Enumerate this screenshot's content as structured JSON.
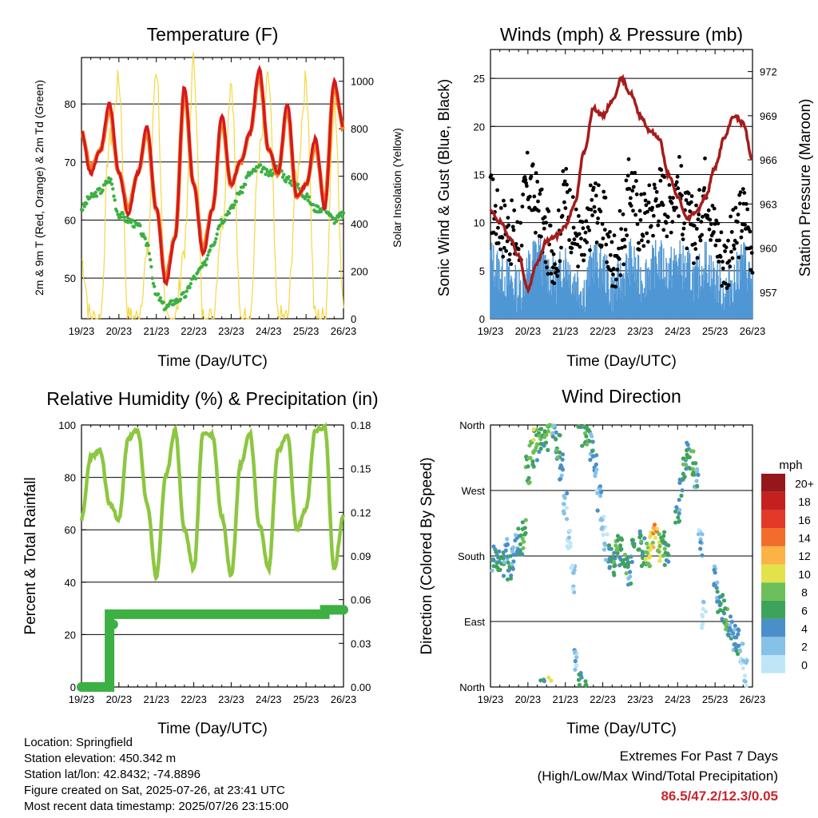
{
  "colors": {
    "temp_2m": "#d7191c",
    "temp_9m": "#f47d20",
    "dewpoint": "#3cb043",
    "insolation": "#f5d742",
    "wind": "#4f97d4",
    "gust": "#000000",
    "pressure": "#a51c1c",
    "humidity": "#8dc641",
    "precip": "#3cb043",
    "direction_speed_scale": [
      "#bfe6f7",
      "#86c1e8",
      "#4a8fc7",
      "#3ea35a",
      "#6cbf5a",
      "#e4e24a",
      "#fbb345",
      "#f26c2c",
      "#e23a29",
      "#c4201f",
      "#95171b"
    ]
  },
  "time_ticks": [
    "19/23",
    "20/23",
    "21/23",
    "22/23",
    "23/23",
    "24/23",
    "25/23",
    "26/23"
  ],
  "chart_data": [
    {
      "id": "temperature",
      "type": "line",
      "title": "Temperature (F)",
      "xlabel": "Time (Day/UTC)",
      "ylabel": "2m & 9m T (Red, Orange) & 2m Td (Green)",
      "y2label": "Solar Insolation (Yellow)",
      "ylim": [
        43,
        88
      ],
      "yticks": [
        50,
        60,
        70,
        80
      ],
      "y2lim": [
        0,
        1100
      ],
      "y2ticks": [
        0,
        200,
        400,
        600,
        800,
        1000
      ],
      "x": [
        0,
        0.25,
        0.5,
        0.75,
        1.0,
        1.25,
        1.5,
        1.75,
        2.0,
        2.25,
        2.5,
        2.75,
        3.0,
        3.25,
        3.5,
        3.75,
        4.0,
        4.25,
        4.5,
        4.75,
        5.0,
        5.25,
        5.5,
        5.75,
        6.0,
        6.25,
        6.5,
        6.75,
        7.0
      ],
      "series": [
        {
          "key": "t2m",
          "values": [
            75,
            68,
            72,
            80,
            68,
            61,
            68,
            76,
            62,
            49,
            57,
            83,
            66,
            54,
            62,
            78,
            66,
            70,
            75,
            86,
            72,
            68,
            80,
            64,
            66,
            74,
            62,
            84,
            76
          ]
        },
        {
          "key": "t9m",
          "values": [
            75,
            69,
            72,
            79,
            68,
            62,
            68,
            75,
            62,
            50,
            57,
            82,
            66,
            55,
            62,
            77,
            66,
            70,
            75,
            85,
            72,
            68,
            79,
            64,
            66,
            73,
            63,
            83,
            76
          ]
        },
        {
          "key": "td2m",
          "values": [
            62,
            64,
            65,
            67,
            61,
            60,
            59,
            56,
            47,
            45,
            46,
            47,
            50,
            52,
            56,
            60,
            62,
            65,
            68,
            69,
            68,
            69,
            67,
            66,
            64,
            62,
            62,
            60,
            61
          ]
        },
        {
          "key": "insolation",
          "values": [
            250,
            0,
            0,
            750,
            1000,
            0,
            0,
            250,
            1060,
            0,
            0,
            300,
            1080,
            0,
            0,
            400,
            1000,
            0,
            0,
            700,
            1000,
            0,
            0,
            600,
            1000,
            0,
            0,
            900,
            100
          ]
        }
      ]
    },
    {
      "id": "winds",
      "type": "scatter",
      "title": "Winds (mph) & Pressure (mb)",
      "xlabel": "Time (Day/UTC)",
      "ylabel": "Sonic Wind & Gust (Blue, Black)",
      "y2label": "Station Pressure (Maroon)",
      "ylim": [
        0,
        28
      ],
      "yticks": [
        0,
        5,
        10,
        15,
        20,
        25
      ],
      "y2lim": [
        955.2,
        973.5
      ],
      "y2ticks": [
        957,
        960,
        963,
        966,
        969,
        972
      ],
      "x": [
        0,
        0.25,
        0.5,
        0.75,
        1.0,
        1.25,
        1.5,
        1.75,
        2.0,
        2.25,
        2.5,
        2.75,
        3.0,
        3.25,
        3.5,
        3.75,
        4.0,
        4.25,
        4.5,
        4.75,
        5.0,
        5.25,
        5.5,
        5.75,
        6.0,
        6.25,
        6.5,
        6.75,
        7.0
      ],
      "series": [
        {
          "key": "wind",
          "values": [
            6,
            5,
            4,
            3,
            5,
            7,
            5,
            4,
            6,
            4,
            3,
            6,
            5,
            3,
            4,
            6,
            4,
            5,
            6,
            5,
            6,
            5,
            4,
            6,
            4,
            3,
            4,
            6,
            4
          ]
        },
        {
          "key": "gust",
          "values": [
            12,
            10,
            9,
            8,
            14,
            12,
            8,
            7,
            13,
            9,
            7,
            12,
            10,
            6,
            8,
            14,
            10,
            11,
            13,
            12,
            14,
            10,
            9,
            14,
            9,
            6,
            8,
            11,
            8
          ]
        },
        {
          "key": "pressure",
          "values": [
            962.5,
            961.8,
            960.8,
            959.5,
            957.2,
            959.0,
            960.5,
            960.8,
            961.5,
            963.0,
            966.5,
            969.5,
            969.0,
            970.0,
            971.5,
            970.5,
            969.0,
            968.0,
            967.5,
            965.0,
            963.5,
            962.0,
            962.5,
            963.5,
            965.5,
            967.5,
            969.0,
            968.5,
            966.0
          ]
        }
      ]
    },
    {
      "id": "humidity",
      "type": "line",
      "title": "Relative Humidity (%) & Precipitation (in)",
      "xlabel": "Time (Day/UTC)",
      "ylabel": "Percent & Total Rainfall",
      "ylim": [
        0,
        100
      ],
      "yticks": [
        0,
        20,
        40,
        60,
        80,
        100
      ],
      "y2lim": [
        0,
        0.18
      ],
      "y2ticks": [
        "0.00",
        "0.03",
        "0.06",
        "0.09",
        "0.12",
        "0.15",
        "0.18"
      ],
      "x": [
        0,
        0.25,
        0.5,
        0.75,
        1.0,
        1.25,
        1.5,
        1.75,
        2.0,
        2.25,
        2.5,
        2.75,
        3.0,
        3.25,
        3.5,
        3.75,
        4.0,
        4.25,
        4.5,
        4.75,
        5.0,
        5.25,
        5.5,
        5.75,
        6.0,
        6.25,
        6.5,
        6.75,
        7.0
      ],
      "series": [
        {
          "key": "rh",
          "values": [
            64,
            88,
            90,
            70,
            64,
            95,
            98,
            70,
            42,
            80,
            98,
            60,
            45,
            97,
            96,
            65,
            43,
            85,
            97,
            62,
            45,
            90,
            96,
            60,
            68,
            98,
            99,
            45,
            65
          ]
        },
        {
          "key": "precip",
          "values": [
            0,
            0,
            0,
            0.05,
            0.05,
            0.05,
            0.05,
            0.05,
            0.05,
            0.05,
            0.05,
            0.05,
            0.05,
            0.05,
            0.05,
            0.05,
            0.05,
            0.05,
            0.05,
            0.05,
            0.05,
            0.05,
            0.05,
            0.05,
            0.05,
            0.05,
            0.053,
            0.053,
            0.053
          ]
        }
      ]
    },
    {
      "id": "direction",
      "type": "scatter",
      "title": "Wind Direction",
      "xlabel": "Time (Day/UTC)",
      "ylabel": "Direction (Colored By Speed)",
      "ylim": [
        0,
        360
      ],
      "yticks": [
        "North",
        "East",
        "South",
        "West",
        "North"
      ],
      "legend_title": "mph",
      "legend_labels": [
        "0",
        "2",
        "4",
        "6",
        "8",
        "10",
        "12",
        "14",
        "16",
        "18",
        "20+"
      ],
      "points": [
        [
          0.1,
          175,
          4
        ],
        [
          0.2,
          180,
          5
        ],
        [
          0.3,
          170,
          6
        ],
        [
          0.4,
          185,
          3
        ],
        [
          0.5,
          165,
          5
        ],
        [
          0.6,
          180,
          4
        ],
        [
          0.7,
          190,
          3
        ],
        [
          0.8,
          200,
          5
        ],
        [
          0.9,
          210,
          7
        ],
        [
          1.0,
          300,
          6
        ],
        [
          1.1,
          320,
          7
        ],
        [
          1.2,
          340,
          8
        ],
        [
          1.3,
          330,
          6
        ],
        [
          1.4,
          350,
          5
        ],
        [
          1.5,
          345,
          7
        ],
        [
          1.6,
          355,
          9
        ],
        [
          1.7,
          340,
          4
        ],
        [
          1.8,
          330,
          6
        ],
        [
          1.9,
          300,
          3
        ],
        [
          2.0,
          250,
          2
        ],
        [
          2.1,
          200,
          1
        ],
        [
          2.2,
          150,
          1
        ],
        [
          2.3,
          40,
          2
        ],
        [
          2.4,
          10,
          5
        ],
        [
          2.5,
          350,
          6
        ],
        [
          2.6,
          345,
          7
        ],
        [
          2.7,
          330,
          4
        ],
        [
          2.8,
          300,
          3
        ],
        [
          2.9,
          260,
          2
        ],
        [
          3.0,
          220,
          1
        ],
        [
          3.1,
          190,
          2
        ],
        [
          3.2,
          180,
          5
        ],
        [
          3.3,
          170,
          6
        ],
        [
          3.4,
          200,
          7
        ],
        [
          3.5,
          185,
          5
        ],
        [
          3.6,
          175,
          6
        ],
        [
          3.7,
          160,
          4
        ],
        [
          3.8,
          190,
          5
        ],
        [
          4.0,
          200,
          6
        ],
        [
          4.1,
          185,
          5
        ],
        [
          4.2,
          180,
          8
        ],
        [
          4.3,
          195,
          10
        ],
        [
          4.4,
          205,
          12
        ],
        [
          4.5,
          190,
          9
        ],
        [
          4.6,
          200,
          7
        ],
        [
          4.7,
          180,
          5
        ],
        [
          5.0,
          230,
          4
        ],
        [
          5.1,
          270,
          5
        ],
        [
          5.2,
          300,
          6
        ],
        [
          5.3,
          320,
          5
        ],
        [
          5.4,
          310,
          7
        ],
        [
          5.5,
          290,
          4
        ],
        [
          5.6,
          200,
          2
        ],
        [
          5.7,
          100,
          1
        ],
        [
          6.0,
          150,
          3
        ],
        [
          6.1,
          120,
          4
        ],
        [
          6.2,
          110,
          5
        ],
        [
          6.3,
          90,
          6
        ],
        [
          6.4,
          80,
          4
        ],
        [
          6.5,
          70,
          3
        ],
        [
          6.6,
          60,
          5
        ],
        [
          6.7,
          40,
          2
        ],
        [
          6.8,
          20,
          1
        ]
      ]
    }
  ],
  "footer": {
    "location": "Location: Springfield",
    "elevation": "Station elevation: 450.342 m",
    "latlon": "Station lat/lon: 42.8432; -74.8896",
    "created": "Figure created on Sat, 2025-07-26, at 23:41 UTC",
    "recent": "Most recent data timestamp: 2025/07/26 23:15:00"
  },
  "extremes": {
    "line1": "Extremes For Past 7 Days",
    "line2": "(High/Low/Max Wind/Total Precipitation)",
    "values": "86.5/47.2/12.3/0.05"
  }
}
